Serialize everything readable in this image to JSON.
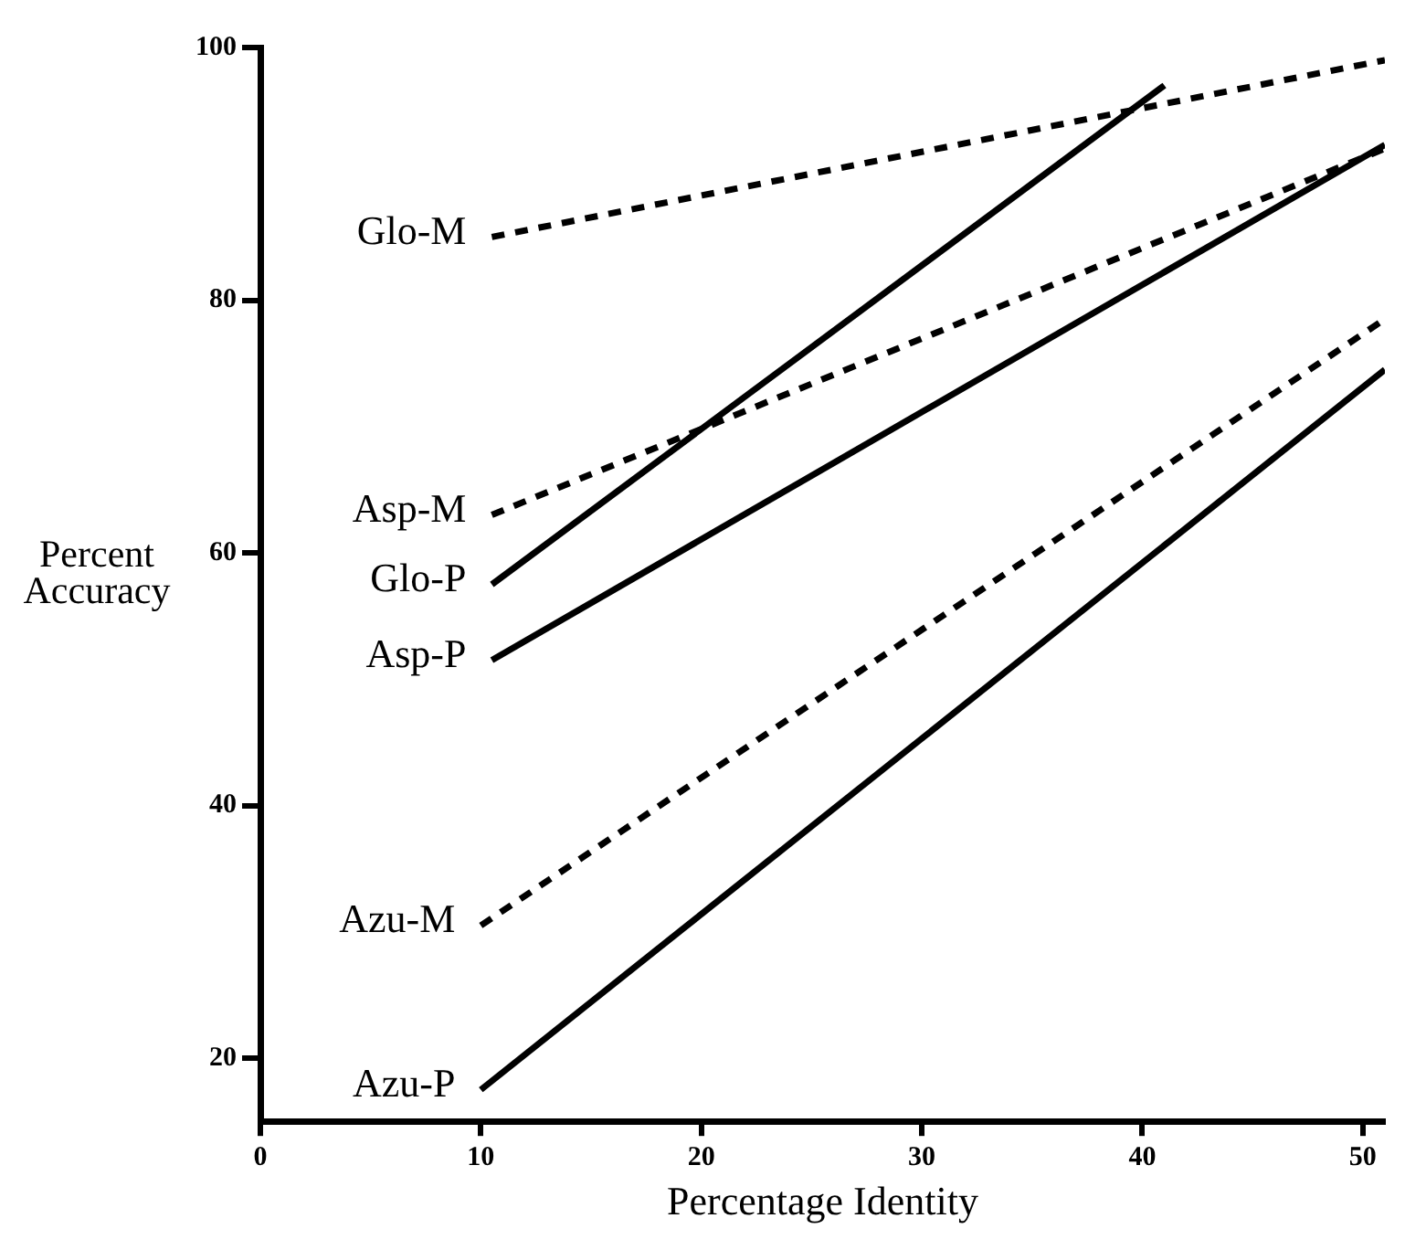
{
  "chart_data": {
    "type": "line",
    "xlabel": "Percentage Identity",
    "ylabel": "Percent Accuracy",
    "xlim": [
      0,
      51
    ],
    "xticks": [
      0,
      10,
      20,
      30,
      40,
      50
    ],
    "ylim": [
      15,
      100
    ],
    "yticks": [
      20,
      40,
      60,
      80,
      100
    ],
    "legend": false,
    "marker": "none",
    "series": [
      {
        "name": "Glo-M",
        "color": "#000000",
        "line_style": "dashed",
        "x": [
          10.5,
          51
        ],
        "values": [
          85,
          99
        ]
      },
      {
        "name": "Asp-M",
        "color": "#000000",
        "line_style": "dashed",
        "x": [
          10.5,
          51
        ],
        "values": [
          63,
          92
        ]
      },
      {
        "name": "Glo-P",
        "color": "#000000",
        "line_style": "solid",
        "x": [
          10.5,
          41
        ],
        "values": [
          57.5,
          97
        ]
      },
      {
        "name": "Asp-P",
        "color": "#000000",
        "line_style": "solid",
        "x": [
          10.5,
          51
        ],
        "values": [
          51.5,
          92.3
        ]
      },
      {
        "name": "Azu-M",
        "color": "#000000",
        "line_style": "dashed",
        "x": [
          10,
          51
        ],
        "values": [
          30.5,
          78.5
        ]
      },
      {
        "name": "Azu-P",
        "color": "#000000",
        "line_style": "solid",
        "x": [
          10,
          51
        ],
        "values": [
          17.5,
          74.5
        ]
      }
    ]
  }
}
